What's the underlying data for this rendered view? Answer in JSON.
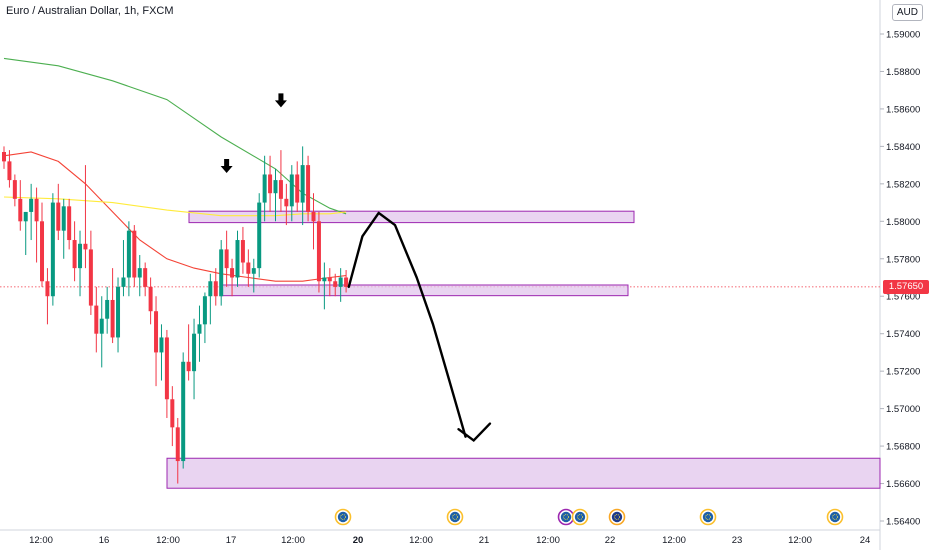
{
  "header": {
    "symbol_title": "Euro / Australian Dollar, 1h, FXCM",
    "currency": "AUD"
  },
  "last_price": "1.57650",
  "colors": {
    "up": "#089981",
    "down": "#f23645",
    "zone_fill": "#e1c6ec",
    "zone_stroke": "#9c27b0",
    "ma_green": "#4caf50",
    "ma_red": "#f44336",
    "ma_yellow": "#ffeb3b",
    "price_line": "#f23645"
  },
  "chart_data": {
    "type": "candlestick",
    "title": "Euro / Australian Dollar, 1h, FXCM",
    "y_range": [
      1.5635,
      1.5915
    ],
    "y_ticks": [
      "1.59000",
      "1.58800",
      "1.58600",
      "1.58400",
      "1.58200",
      "1.58000",
      "1.57800",
      "1.57600",
      "1.57400",
      "1.57200",
      "1.57000",
      "1.56800",
      "1.56600",
      "1.56400"
    ],
    "x_ticks": [
      {
        "label": "12:00",
        "bold": false
      },
      {
        "label": "16",
        "bold": false
      },
      {
        "label": "12:00",
        "bold": false
      },
      {
        "label": "17",
        "bold": false
      },
      {
        "label": "12:00",
        "bold": false
      },
      {
        "label": "20",
        "bold": true
      },
      {
        "label": "12:00",
        "bold": false
      },
      {
        "label": "21",
        "bold": false
      },
      {
        "label": "12:00",
        "bold": false
      },
      {
        "label": "22",
        "bold": false
      },
      {
        "label": "12:00",
        "bold": false
      },
      {
        "label": "23",
        "bold": false
      },
      {
        "label": "12:00",
        "bold": false
      },
      {
        "label": "24",
        "bold": false
      }
    ],
    "candles": [
      [
        1.5837,
        1.584,
        1.5828,
        1.5832
      ],
      [
        1.5832,
        1.5838,
        1.5818,
        1.5822
      ],
      [
        1.5822,
        1.5825,
        1.5808,
        1.5812
      ],
      [
        1.5812,
        1.5822,
        1.5795,
        1.58
      ],
      [
        1.58,
        1.5805,
        1.5782,
        1.5805
      ],
      [
        1.5805,
        1.582,
        1.579,
        1.5812
      ],
      [
        1.5812,
        1.5818,
        1.5778,
        1.58
      ],
      [
        1.58,
        1.581,
        1.5765,
        1.5768
      ],
      [
        1.5768,
        1.5775,
        1.5745,
        1.576
      ],
      [
        1.576,
        1.5815,
        1.5755,
        1.581
      ],
      [
        1.581,
        1.582,
        1.579,
        1.5795
      ],
      [
        1.5795,
        1.5812,
        1.578,
        1.5808
      ],
      [
        1.5808,
        1.5812,
        1.5785,
        1.579
      ],
      [
        1.579,
        1.58,
        1.5768,
        1.5775
      ],
      [
        1.5775,
        1.5795,
        1.576,
        1.5788
      ],
      [
        1.5788,
        1.583,
        1.5775,
        1.5785
      ],
      [
        1.5785,
        1.5795,
        1.575,
        1.5755
      ],
      [
        1.5755,
        1.5765,
        1.573,
        1.574
      ],
      [
        1.574,
        1.576,
        1.5722,
        1.5748
      ],
      [
        1.5748,
        1.5765,
        1.574,
        1.5758
      ],
      [
        1.5758,
        1.5775,
        1.5735,
        1.5738
      ],
      [
        1.5738,
        1.577,
        1.573,
        1.5765
      ],
      [
        1.5765,
        1.579,
        1.576,
        1.577
      ],
      [
        1.577,
        1.58,
        1.576,
        1.5795
      ],
      [
        1.5795,
        1.5798,
        1.5765,
        1.577
      ],
      [
        1.577,
        1.5782,
        1.576,
        1.5775
      ],
      [
        1.5775,
        1.5778,
        1.576,
        1.5765
      ],
      [
        1.5765,
        1.577,
        1.5745,
        1.5752
      ],
      [
        1.5752,
        1.576,
        1.5712,
        1.573
      ],
      [
        1.573,
        1.5745,
        1.5715,
        1.5738
      ],
      [
        1.5738,
        1.5742,
        1.5695,
        1.5705
      ],
      [
        1.5705,
        1.5712,
        1.568,
        1.569
      ],
      [
        1.569,
        1.5695,
        1.566,
        1.5672
      ],
      [
        1.5672,
        1.573,
        1.5668,
        1.5725
      ],
      [
        1.5725,
        1.5745,
        1.5715,
        1.572
      ],
      [
        1.572,
        1.5748,
        1.5705,
        1.574
      ],
      [
        1.574,
        1.5755,
        1.5725,
        1.5745
      ],
      [
        1.5745,
        1.5762,
        1.5735,
        1.576
      ],
      [
        1.576,
        1.5772,
        1.5745,
        1.5768
      ],
      [
        1.5768,
        1.5775,
        1.5755,
        1.576
      ],
      [
        1.576,
        1.579,
        1.5755,
        1.5785
      ],
      [
        1.5785,
        1.5795,
        1.5765,
        1.5775
      ],
      [
        1.5775,
        1.578,
        1.576,
        1.577
      ],
      [
        1.577,
        1.5795,
        1.5765,
        1.579
      ],
      [
        1.579,
        1.5797,
        1.5772,
        1.5778
      ],
      [
        1.5778,
        1.5785,
        1.5765,
        1.5772
      ],
      [
        1.5772,
        1.578,
        1.5762,
        1.5775
      ],
      [
        1.5775,
        1.5815,
        1.577,
        1.581
      ],
      [
        1.581,
        1.5835,
        1.58,
        1.5825
      ],
      [
        1.5825,
        1.5835,
        1.5805,
        1.5815
      ],
      [
        1.5815,
        1.5828,
        1.58,
        1.5822
      ],
      [
        1.5822,
        1.5838,
        1.5805,
        1.5812
      ],
      [
        1.5812,
        1.582,
        1.5798,
        1.5808
      ],
      [
        1.5808,
        1.583,
        1.58,
        1.5825
      ],
      [
        1.5825,
        1.5832,
        1.5805,
        1.581
      ],
      [
        1.581,
        1.584,
        1.5798,
        1.583
      ],
      [
        1.583,
        1.5835,
        1.58,
        1.5805
      ],
      [
        1.5805,
        1.5815,
        1.5785,
        1.58
      ],
      [
        1.58,
        1.5805,
        1.5762,
        1.5768
      ],
      [
        1.5768,
        1.5778,
        1.5753,
        1.577
      ],
      [
        1.577,
        1.5775,
        1.576,
        1.5768
      ],
      [
        1.5768,
        1.5772,
        1.576,
        1.5765
      ],
      [
        1.5765,
        1.5775,
        1.5757,
        1.577
      ],
      [
        1.577,
        1.5774,
        1.5762,
        1.5765
      ]
    ],
    "moving_averages": [
      {
        "color": "green",
        "points": [
          [
            0,
            1.5887
          ],
          [
            10,
            1.5883
          ],
          [
            20,
            1.5875
          ],
          [
            30,
            1.5865
          ],
          [
            40,
            1.5845
          ],
          [
            50,
            1.5828
          ],
          [
            55,
            1.5815
          ],
          [
            60,
            1.5807
          ],
          [
            63,
            1.5804
          ]
        ]
      },
      {
        "color": "red",
        "points": [
          [
            0,
            1.5835
          ],
          [
            5,
            1.5837
          ],
          [
            10,
            1.5832
          ],
          [
            15,
            1.582
          ],
          [
            20,
            1.5805
          ],
          [
            25,
            1.579
          ],
          [
            30,
            1.578
          ],
          [
            35,
            1.5775
          ],
          [
            40,
            1.5772
          ],
          [
            45,
            1.577
          ],
          [
            50,
            1.5768
          ],
          [
            55,
            1.5768
          ],
          [
            60,
            1.577
          ],
          [
            63,
            1.5771
          ]
        ]
      },
      {
        "color": "yellow",
        "points": [
          [
            0,
            1.5813
          ],
          [
            10,
            1.5812
          ],
          [
            20,
            1.581
          ],
          [
            30,
            1.5806
          ],
          [
            40,
            1.5803
          ],
          [
            50,
            1.5803
          ],
          [
            55,
            1.5804
          ],
          [
            60,
            1.5804
          ],
          [
            63,
            1.5805
          ]
        ]
      }
    ],
    "zones": [
      {
        "top": 1.58054,
        "bottom": 1.57993,
        "start_bar": 35,
        "end": "2024-10-22 12:00"
      },
      {
        "top": 1.5766,
        "bottom": 1.57603,
        "start_bar": 41,
        "end": "2024-10-22 12:00"
      },
      {
        "top": 1.56735,
        "bottom": 1.56575,
        "start_bar": 31,
        "end": "right edge"
      }
    ],
    "markers": [
      {
        "type": "down-arrow",
        "bar": 41,
        "price": 1.5829
      },
      {
        "type": "down-arrow",
        "bar": 51,
        "price": 1.5864
      }
    ],
    "projection_path": [
      [
        63.5,
        1.5765
      ],
      [
        66,
        1.5792
      ],
      [
        69,
        1.58045
      ],
      [
        72,
        1.5798
      ],
      [
        76,
        1.577
      ],
      [
        79,
        1.5745
      ],
      [
        82,
        1.5715
      ],
      [
        85,
        1.5685
      ]
    ],
    "projection_arrow_head": {
      "tip": [
        86.5,
        1.5683
      ],
      "left": [
        83.7,
        1.5689
      ],
      "right": [
        89.5,
        1.5692
      ]
    },
    "event_icons": [
      {
        "type": "calendar-event",
        "x": "2024-10-20 00:00"
      },
      {
        "type": "calendar-event",
        "x": "2024-10-21 00:00"
      },
      {
        "type": "calendar-event",
        "x": "2024-10-22 00:00"
      },
      {
        "type": "calendar-event",
        "x": "2024-10-22 00:00"
      },
      {
        "type": "australia-flag-event",
        "x": "2024-10-22 00:00"
      },
      {
        "type": "calendar-event",
        "x": "2024-10-23 00:00"
      },
      {
        "type": "calendar-event",
        "x": "2024-10-24 00:00"
      }
    ]
  }
}
